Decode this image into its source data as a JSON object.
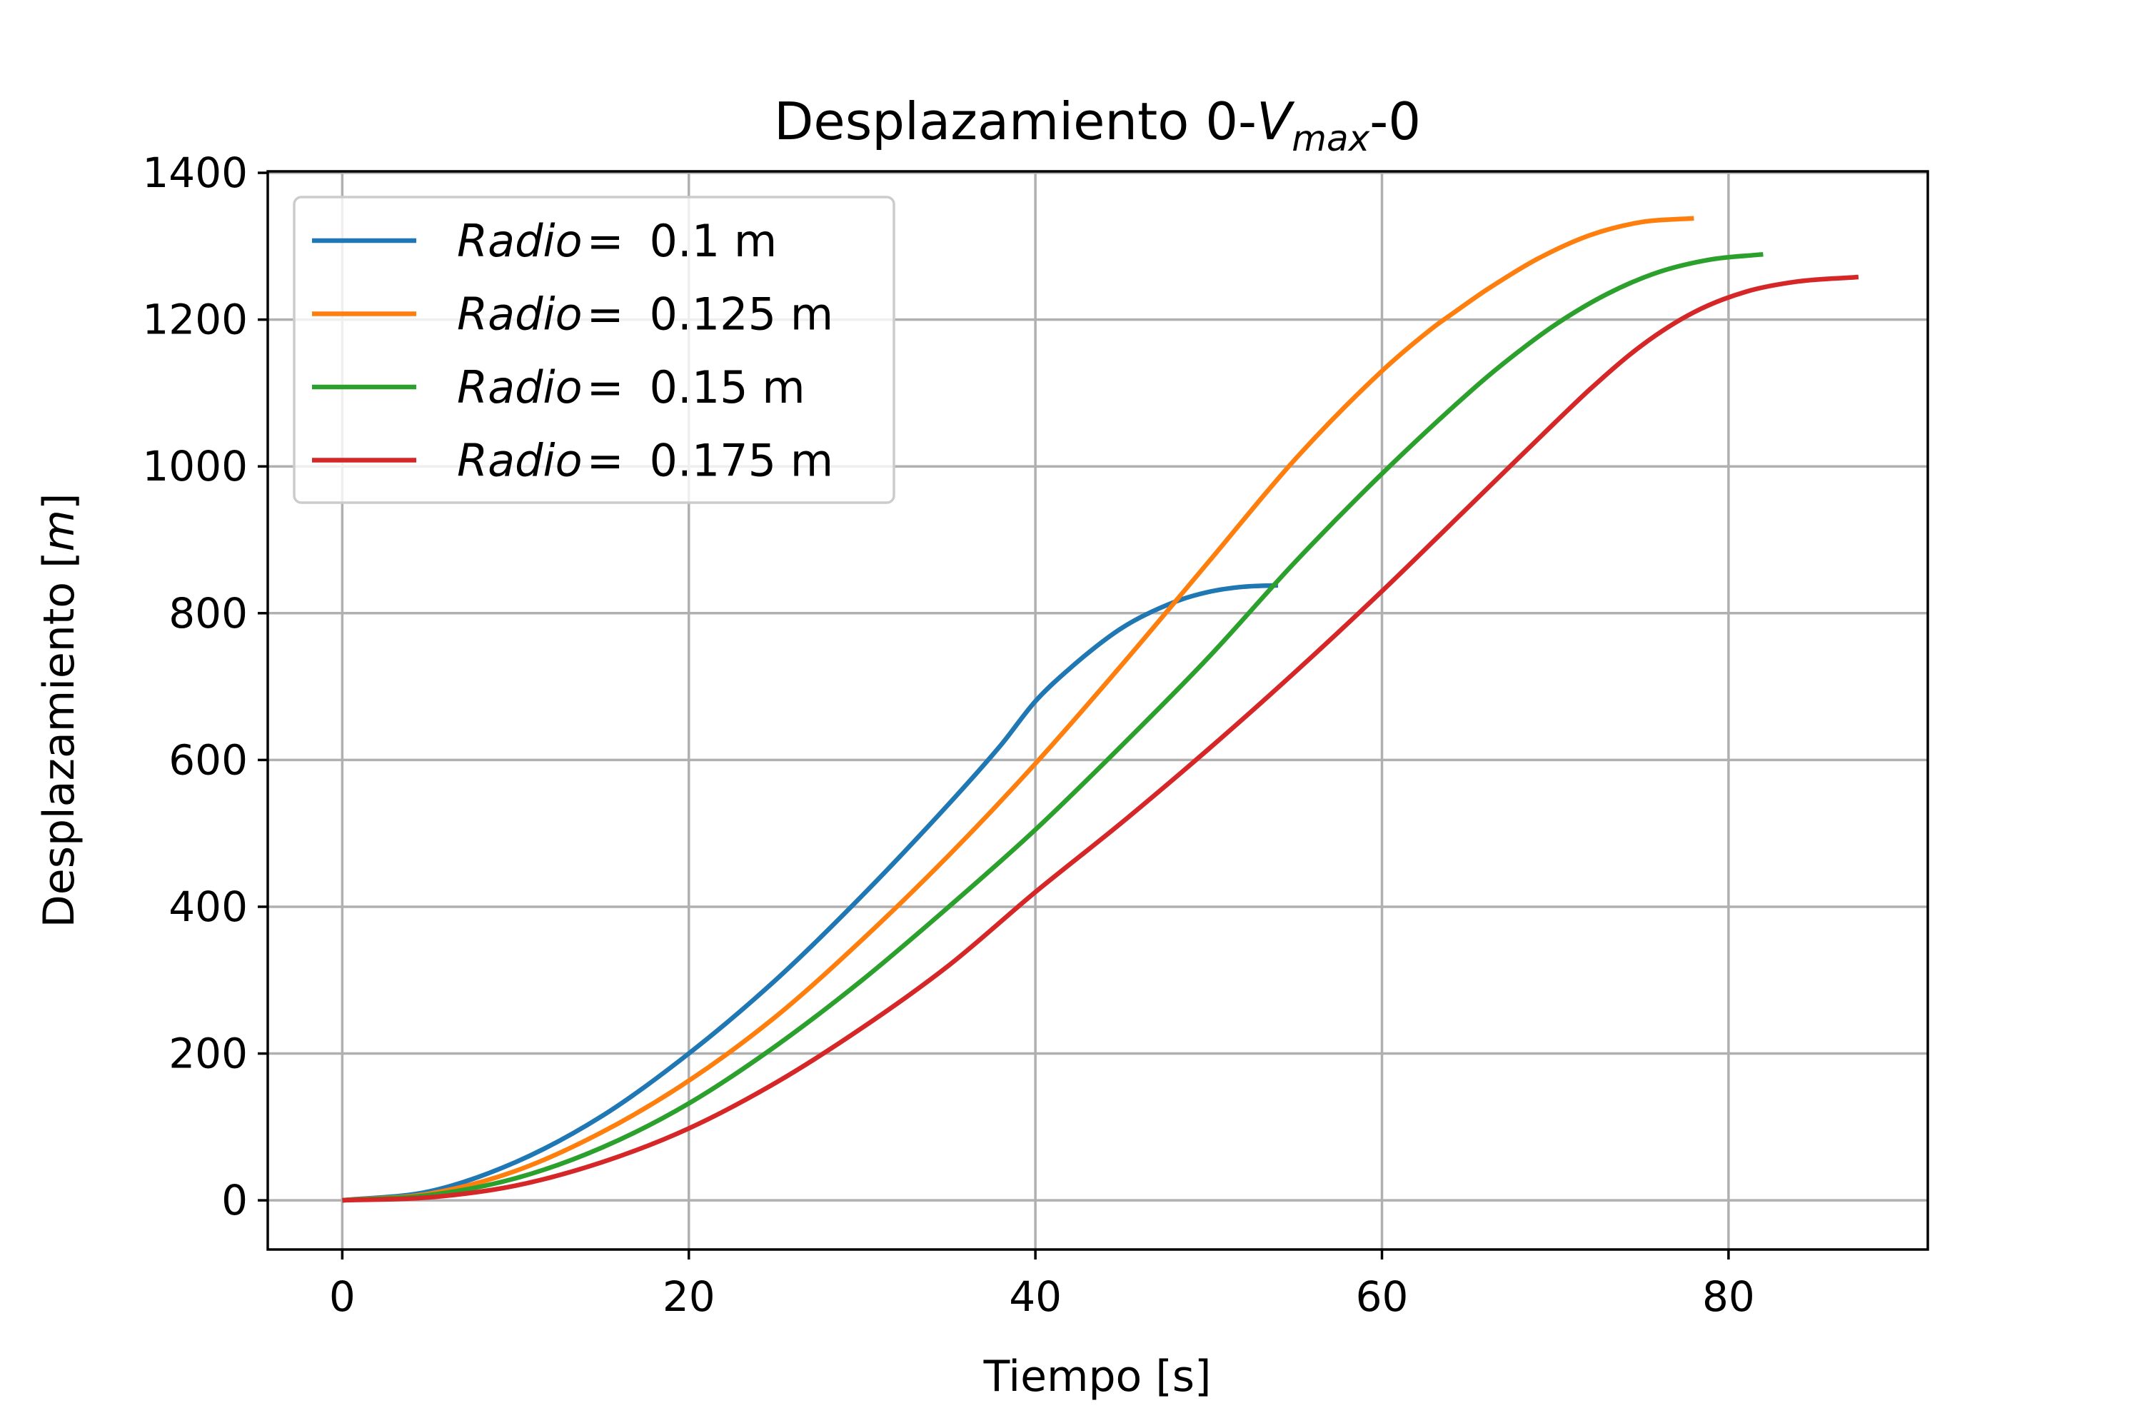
{
  "chart_data": {
    "type": "line",
    "title": {
      "prefix": "Desplazamiento 0-",
      "var": "V",
      "sub": "max",
      "suffix": "-0"
    },
    "xlabel": "Tiempo [s]",
    "ylabel": {
      "text": "Desplazamiento [",
      "unit": "m",
      "close": "]"
    },
    "xlim": [
      -4.3,
      91.5
    ],
    "ylim": [
      -67,
      1402
    ],
    "xticks": [
      0,
      20,
      40,
      60,
      80
    ],
    "yticks": [
      0,
      200,
      400,
      600,
      800,
      1000,
      1200,
      1400
    ],
    "grid": true,
    "legend_position": "top-left",
    "legend_prefix": "Radio",
    "legend_eq": "=",
    "series": [
      {
        "name": "0.1 m",
        "color": "#1f77b4",
        "x": [
          0,
          5,
          10,
          15,
          20,
          25,
          30,
          35,
          38,
          40,
          42,
          45,
          48,
          50,
          52,
          54
        ],
        "y": [
          0,
          12,
          52,
          115,
          200,
          300,
          415,
          540,
          620,
          680,
          725,
          780,
          815,
          829,
          836,
          838
        ]
      },
      {
        "name": "0.125 m",
        "color": "#ff7f0e",
        "x": [
          0,
          5,
          10,
          15,
          20,
          25,
          30,
          35,
          40,
          45,
          50,
          55,
          60,
          63,
          64,
          66,
          69,
          72,
          75,
          78
        ],
        "y": [
          0,
          9,
          40,
          93,
          163,
          250,
          355,
          470,
          595,
          730,
          870,
          1010,
          1130,
          1190,
          1207,
          1240,
          1283,
          1315,
          1333,
          1338
        ]
      },
      {
        "name": "0.15 m",
        "color": "#2ca02c",
        "x": [
          0,
          5,
          10,
          15,
          20,
          25,
          30,
          35,
          40,
          45,
          50,
          55,
          60,
          65,
          67,
          70,
          73,
          76,
          79,
          82
        ],
        "y": [
          0,
          7,
          30,
          72,
          132,
          210,
          300,
          400,
          505,
          620,
          740,
          870,
          990,
          1100,
          1140,
          1193,
          1235,
          1265,
          1282,
          1289
        ]
      },
      {
        "name": "0.175 m",
        "color": "#d62728",
        "x": [
          0,
          5,
          10,
          15,
          20,
          25,
          30,
          35,
          40,
          45,
          50,
          55,
          60,
          65,
          70,
          72,
          75,
          78,
          81,
          84,
          87.5
        ],
        "y": [
          0,
          4,
          20,
          52,
          98,
          160,
          235,
          320,
          420,
          515,
          615,
          720,
          830,
          945,
          1060,
          1105,
          1165,
          1210,
          1238,
          1252,
          1258
        ]
      }
    ]
  }
}
